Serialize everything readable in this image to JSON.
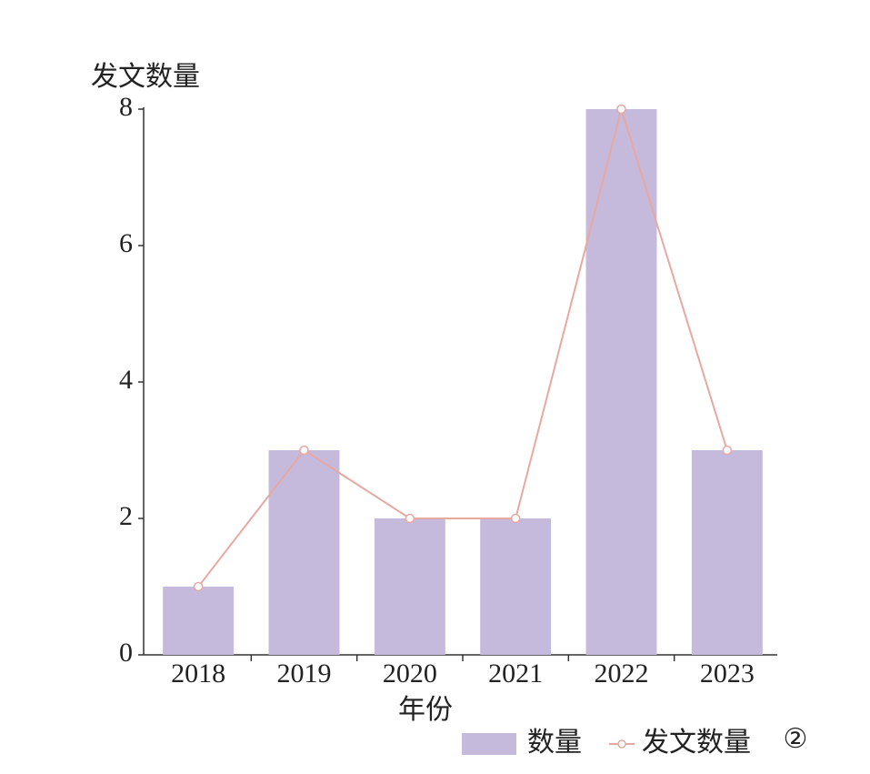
{
  "chart_data": {
    "type": "bar",
    "y_label": "发文数量",
    "x_label": "年份",
    "categories": [
      "2018",
      "2019",
      "2020",
      "2021",
      "2022",
      "2023"
    ],
    "series": [
      {
        "name": "数量",
        "type": "bar",
        "color": "#c5b9dc",
        "values": [
          1,
          3,
          2,
          2,
          8,
          3
        ]
      },
      {
        "name": "发文数量",
        "type": "line",
        "color": "#e8a8a2",
        "values": [
          1,
          3,
          2,
          2,
          8,
          3
        ]
      }
    ],
    "ylim": [
      0,
      8
    ],
    "yticks": [
      0,
      2,
      4,
      6,
      8
    ],
    "annotation": "②"
  }
}
